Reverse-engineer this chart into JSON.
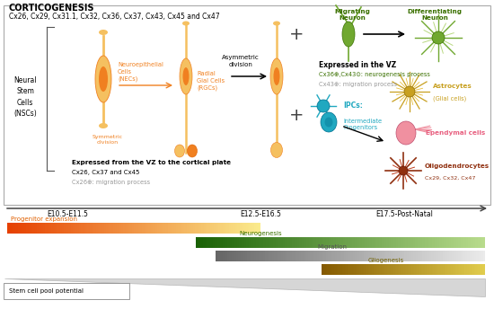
{
  "title": "CORTICOGENESIS",
  "subtitle": "Cx26, Cx29, Cx31.1, Cx32, Cx36, Cx37, Cx43, Cx45 and Cx47",
  "left_label": "Neural\nStem\nCells\n(NSCs)",
  "nec_label": "Neuroepithelial\nCells\n(NECs)",
  "symmetric_label": "Symmetric\ndivision",
  "rgc_label": "Radial\nGial Cells\n(RGCs)",
  "asymmetric_label": "Asymmetric\ndivision",
  "migrating_label": "Migrating\nNeuron",
  "differentiating_label": "Differentiating\nNeuron",
  "vz_label": "Expressed in the VZ",
  "vz_text1": "Cx36⊕,Cx43⊙: neurogenesis process",
  "vz_text2": "Cx43⊕: migration process",
  "ipc_label_title": "IPCs:",
  "ipc_label_body": "Intermediate\nProgenitors",
  "astrocyte_label1": "Astrocytes",
  "astrocyte_label2": "(Glial cells)",
  "ependymal_label": "Ependymal cells",
  "oligo_label1": "Oligodendrocytes",
  "oligo_label2": "Cx29, Cx32, Cx47",
  "cortical_text1": "Expressed from the VZ to the cortical plate",
  "cortical_text2": "Cx26, Cx37 and Cx45",
  "cortical_text3": "Cx26⊕: migration process",
  "time_labels": [
    "E10.5-E11.5",
    "E12.5-E16.5",
    "E17.5-Post-Natal"
  ],
  "bar_label1": "Progenitor expansion",
  "bar_label2": "Neurogenesis",
  "bar_label3": "Migration",
  "bar_label4": "Gliogenesis",
  "stem_cell_label": "Stem cell pool potential",
  "orange_light": "#F5C060",
  "orange_mid": "#F08020",
  "orange_dark": "#E06000",
  "green_dark": "#3A7000",
  "green_mid": "#70A830",
  "green_light": "#B8D880",
  "teal": "#20A8C0",
  "teal_dark": "#007090",
  "gold": "#C8A020",
  "pink": "#E86080",
  "brown_red": "#903010",
  "gray_text": "#999999",
  "box_edge": "#aaaaaa"
}
